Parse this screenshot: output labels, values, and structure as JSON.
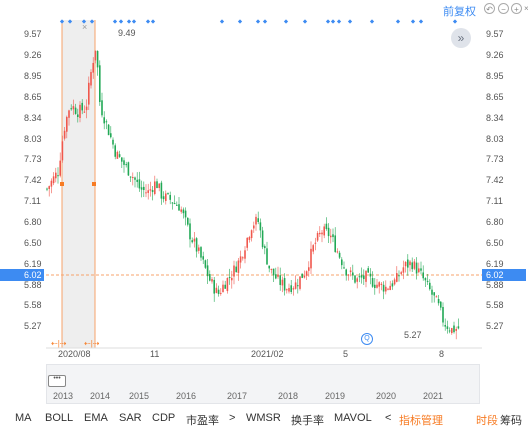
{
  "header": {
    "fq_label": "前复权",
    "controls": [
      "undo-icon",
      "zoom-out-icon",
      "zoom-in-icon",
      "close-icon"
    ]
  },
  "price_axis": {
    "left_ticks": [
      "9.57",
      "9.26",
      "8.95",
      "8.65",
      "8.34",
      "8.03",
      "7.73",
      "7.42",
      "7.11",
      "6.80",
      "6.50",
      "6.19",
      "5.88",
      "5.58",
      "5.27"
    ],
    "right_ticks": [
      "9.57",
      "9.26",
      "8.95",
      "8.65",
      "8.34",
      "8.03",
      "7.73",
      "7.42",
      "7.11",
      "6.80",
      "6.50",
      "6.19",
      "5.88",
      "5.58",
      "5.27"
    ]
  },
  "current_price": "6.02",
  "high_label": "9.49",
  "low_label": "5.27",
  "time_axis": [
    "2020/08",
    "11",
    "2021/02",
    "5",
    "8"
  ],
  "navigator_years": [
    "2013",
    "2014",
    "2015",
    "2016",
    "2017",
    "2018",
    "2019",
    "2020",
    "2021"
  ],
  "indicators": [
    "MA",
    "BOLL",
    "EMA",
    "SAR",
    "CDP",
    "市盈率",
    ">",
    "WMSR",
    "换手率",
    "MAVOL",
    "<",
    "指标管理"
  ],
  "right_tabs": [
    "时段",
    "筹码"
  ],
  "colors": {
    "up": "#f0574c",
    "down": "#21a855",
    "accent": "#3d8bf2",
    "highlight": "#f77b23"
  },
  "chart_data": {
    "type": "candlestick",
    "title": "",
    "ylim": [
      5.12,
      9.72
    ],
    "x_ticks": [
      "2020/08",
      "11",
      "2021/02",
      "5",
      "8"
    ],
    "high": 9.49,
    "low": 5.27,
    "last": 6.02
  }
}
